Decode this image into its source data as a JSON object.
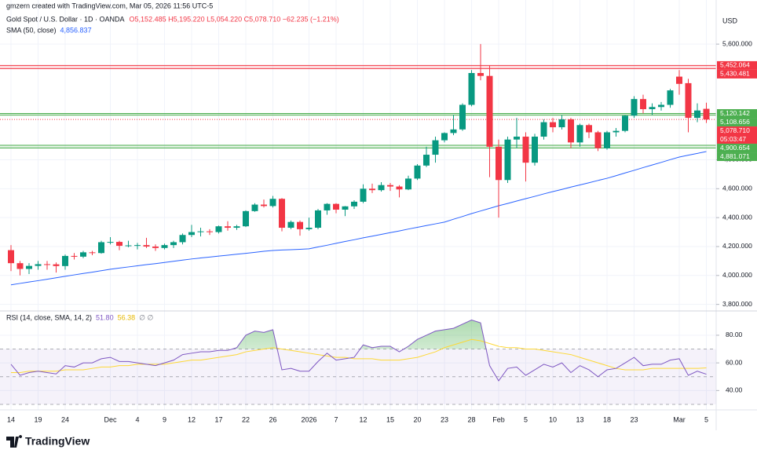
{
  "chart_data": {
    "type": "candlestick",
    "attribution": "gmzern created with TradingView.com, Mar 05, 2026 11:56 UTC-5",
    "symbol": "Gold Spot / U.S. Dollar · 1D · OANDA",
    "ohlc_text": "O5,152.485 H5,195.220 L5,054.220 C5,078.710 −62.235 (−1.21%)",
    "currency": "USD",
    "brand": "TradingView",
    "up_color": "#089981",
    "down_color": "#f23645",
    "grid": true,
    "categories": [
      "14",
      null,
      null,
      "19",
      null,
      null,
      "24",
      null,
      null,
      null,
      null,
      "Dec",
      null,
      null,
      "4",
      null,
      null,
      "9",
      null,
      null,
      "12",
      null,
      null,
      "17",
      null,
      null,
      "22",
      null,
      null,
      "26",
      null,
      null,
      null,
      "2026",
      null,
      null,
      "7",
      null,
      null,
      "12",
      null,
      null,
      "15",
      null,
      null,
      "20",
      null,
      null,
      "23",
      null,
      null,
      "28",
      null,
      null,
      "Feb",
      null,
      null,
      "5",
      null,
      null,
      "10",
      null,
      null,
      "13",
      null,
      null,
      "18",
      null,
      null,
      "23",
      null,
      null,
      null,
      null,
      "Mar",
      null,
      null,
      "5"
    ],
    "open": [
      4175,
      4085,
      4045,
      4066,
      4078,
      4077,
      4065,
      4135,
      4130,
      4160,
      4155,
      4230,
      4232,
      4205,
      4208,
      4210,
      4200,
      4190,
      4210,
      4230,
      4280,
      4300,
      4305,
      4300,
      4340,
      4330,
      4340,
      4445,
      4490,
      4480,
      4530,
      4330,
      4370,
      4320,
      4330,
      4450,
      4495,
      4455,
      4478,
      4510,
      4600,
      4590,
      4625,
      4615,
      4595,
      4670,
      4760,
      4835,
      4935,
      4985,
      5010,
      5180,
      5400,
      5380,
      4890,
      4660,
      4940,
      4960,
      4780,
      4960,
      5060,
      5025,
      5080,
      4920,
      5040,
      4990,
      4880,
      4990,
      5000,
      5105,
      5220,
      5150,
      5165,
      5180,
      5375,
      5330,
      5090,
      5152.485
    ],
    "high": [
      4210,
      4100,
      4085,
      4100,
      4100,
      4090,
      4145,
      4155,
      4170,
      4170,
      4240,
      4265,
      4240,
      4240,
      4225,
      4260,
      4215,
      4220,
      4240,
      4290,
      4350,
      4330,
      4320,
      4345,
      4375,
      4350,
      4450,
      4500,
      4525,
      4550,
      4535,
      4380,
      4380,
      4400,
      4460,
      4500,
      4500,
      4480,
      4520,
      4630,
      4635,
      4645,
      4640,
      4625,
      4690,
      4770,
      4890,
      4960,
      4990,
      5110,
      5190,
      5420,
      5600,
      5450,
      4940,
      4960,
      5090,
      4990,
      4980,
      5080,
      5090,
      5110,
      5090,
      5050,
      5050,
      5000,
      5000,
      5020,
      5110,
      5240,
      5250,
      5190,
      5200,
      5290,
      5420,
      5360,
      5190,
      5195.22
    ],
    "low": [
      4030,
      4000,
      4010,
      4040,
      4040,
      4020,
      4040,
      4110,
      4120,
      4140,
      4150,
      4215,
      4175,
      4195,
      4180,
      4190,
      4170,
      4180,
      4190,
      4215,
      4265,
      4270,
      4280,
      4290,
      4310,
      4315,
      4335,
      4440,
      4470,
      4470,
      4305,
      4320,
      4275,
      4310,
      4320,
      4420,
      4430,
      4410,
      4460,
      4500,
      4570,
      4580,
      4585,
      4540,
      4590,
      4660,
      4750,
      4780,
      4920,
      4970,
      5000,
      5170,
      5350,
      4680,
      4400,
      4640,
      4880,
      4650,
      4760,
      4940,
      4990,
      5010,
      4880,
      4890,
      4950,
      4860,
      4870,
      4960,
      4990,
      5090,
      5120,
      5110,
      5140,
      5160,
      5250,
      4990,
      5060,
      5054.22
    ],
    "close": [
      4085,
      4045,
      4066,
      4078,
      4077,
      4065,
      4135,
      4130,
      4160,
      4155,
      4230,
      4232,
      4205,
      4208,
      4210,
      4200,
      4190,
      4210,
      4230,
      4280,
      4300,
      4305,
      4300,
      4340,
      4330,
      4340,
      4445,
      4490,
      4480,
      4530,
      4330,
      4370,
      4320,
      4330,
      4450,
      4495,
      4455,
      4478,
      4510,
      4600,
      4590,
      4625,
      4615,
      4595,
      4670,
      4760,
      4835,
      4935,
      4985,
      5010,
      5180,
      5400,
      5380,
      4890,
      4660,
      4940,
      4960,
      4780,
      4960,
      5060,
      5025,
      5080,
      4920,
      5040,
      4990,
      4880,
      4990,
      5000,
      5105,
      5220,
      5150,
      5165,
      5180,
      5280,
      5325,
      5090,
      5140.945,
      5078.71
    ],
    "ylim": [
      3760,
      5905
    ],
    "yticks": [
      {
        "value": 3800,
        "label": "3,800.000"
      },
      {
        "value": 4000,
        "label": "4,000.000"
      },
      {
        "value": 4200,
        "label": "4,200.000"
      },
      {
        "value": 4400,
        "label": "4,400.000"
      },
      {
        "value": 4600,
        "label": "4,600.000"
      },
      {
        "value": 4800,
        "label": "4,800.000"
      },
      {
        "value": 5600,
        "label": "5,600.000"
      }
    ],
    "sma": {
      "name": "SMA (50, close)",
      "value_label": "4,856.837",
      "color": "#2962ff",
      "values": [
        3935,
        3945,
        3955,
        3964,
        3974,
        3984,
        3994,
        4004,
        4014,
        4023,
        4033,
        4043,
        4051,
        4059,
        4067,
        4075,
        4082,
        4090,
        4098,
        4106,
        4114,
        4121,
        4127,
        4134,
        4140,
        4147,
        4153,
        4160,
        4167,
        4173,
        4176,
        4178,
        4181,
        4184,
        4197,
        4209,
        4222,
        4235,
        4247,
        4260,
        4272,
        4284,
        4296,
        4308,
        4321,
        4333,
        4345,
        4357,
        4369,
        4389,
        4408,
        4428,
        4446,
        4464,
        4482,
        4498,
        4515,
        4531,
        4547,
        4564,
        4580,
        4595,
        4611,
        4626,
        4641,
        4657,
        4672,
        4690,
        4709,
        4727,
        4746,
        4764,
        4782,
        4801,
        4819,
        4832,
        4844,
        4856.837
      ]
    },
    "levels": [
      {
        "color": "#f23645",
        "lines": [
          {
            "value": 5452.064,
            "label": "5,452.064"
          },
          {
            "value": 5430.481,
            "label": "5,430.481"
          }
        ]
      },
      {
        "color": "#4caf50",
        "lines": [
          {
            "value": 5120.142,
            "label": "5,120.142"
          },
          {
            "value": 5108.656,
            "label": "5,108.656"
          }
        ]
      },
      {
        "color": "#4caf50",
        "lines": [
          {
            "value": 4900.654,
            "label": "4,900.654"
          },
          {
            "value": 4881.071,
            "label": "4,881.071"
          }
        ]
      }
    ],
    "last_price": {
      "value": 5078.71,
      "label": "5,078.710",
      "countdown": "05:03:47",
      "color": "#f23645"
    },
    "rsi": {
      "name": "RSI (14, close, SMA, 14, 2)",
      "value_label": "51.80",
      "ma_label": "56.38",
      "extra": "∅ ∅",
      "color": "#7e57c2",
      "ma_color": "#fdd835",
      "ylim": [
        26,
        97
      ],
      "yticks": [
        {
          "value": 40,
          "label": "40.00"
        },
        {
          "value": 60,
          "label": "60.00"
        },
        {
          "value": 80,
          "label": "80.00"
        }
      ],
      "bands": [
        70,
        50,
        30
      ],
      "values": [
        59,
        51,
        53,
        54,
        53,
        52,
        58,
        57,
        60,
        60,
        63,
        64,
        61,
        61,
        60,
        59,
        58,
        60,
        62,
        66,
        67,
        68,
        68,
        69,
        69,
        71,
        80,
        83,
        82,
        84,
        55,
        56,
        54,
        54,
        61,
        67,
        62,
        63,
        64,
        73,
        71,
        72,
        72,
        68,
        72,
        77,
        80,
        83,
        84,
        85,
        88,
        91,
        89,
        58,
        47,
        56,
        57,
        51,
        55,
        59,
        57,
        60,
        53,
        58,
        55,
        50,
        55,
        56,
        60,
        64,
        58,
        59,
        59,
        62,
        63,
        51,
        54,
        51.8
      ],
      "ma_values": [
        53,
        53,
        54,
        54,
        54,
        54,
        55,
        55,
        55,
        56,
        57,
        57,
        58,
        58,
        59,
        59,
        59,
        59,
        60,
        61,
        62,
        62,
        63,
        64,
        65,
        66,
        68,
        69,
        70,
        71,
        70,
        69,
        68,
        67,
        66,
        65,
        64,
        64,
        63,
        63,
        63,
        62,
        62,
        62,
        63,
        64,
        66,
        68,
        71,
        73,
        75,
        77,
        76,
        74,
        72,
        71,
        71,
        70,
        70,
        69,
        68,
        67,
        66,
        64,
        62,
        60,
        58,
        56,
        55,
        55,
        55,
        56,
        56,
        56,
        56,
        56,
        56,
        56.38
      ]
    }
  }
}
